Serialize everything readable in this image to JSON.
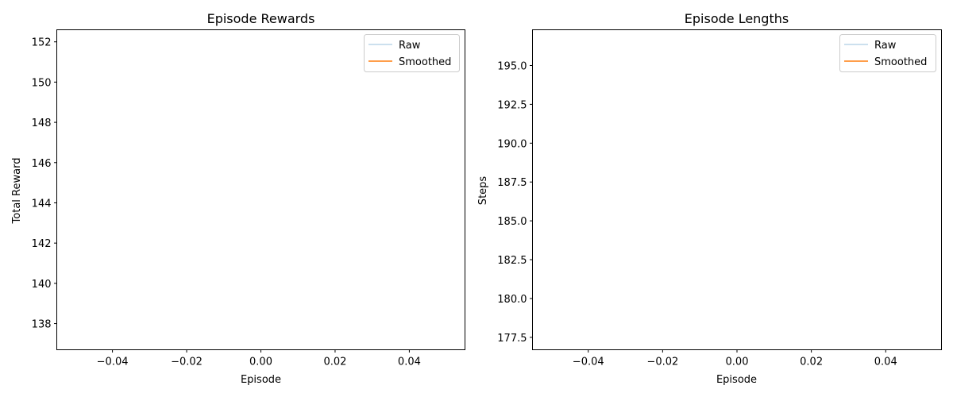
{
  "chart_data": [
    {
      "type": "line",
      "title": "Episode Rewards",
      "xlabel": "Episode",
      "ylabel": "Total Reward",
      "xlim": [
        -0.055,
        0.055
      ],
      "ylim": [
        136.7,
        152.6
      ],
      "xticks": [
        -0.04,
        -0.02,
        0.0,
        0.02,
        0.04
      ],
      "xtick_labels": [
        "−0.04",
        "−0.02",
        "0.00",
        "0.02",
        "0.04"
      ],
      "yticks": [
        138,
        140,
        142,
        144,
        146,
        148,
        150,
        152
      ],
      "ytick_labels": [
        "138",
        "140",
        "142",
        "144",
        "146",
        "148",
        "150",
        "152"
      ],
      "grid": false,
      "legend_position": "upper right",
      "series": [
        {
          "name": "Raw",
          "color": "#1f77b4",
          "alpha": 0.3,
          "x": [],
          "y": []
        },
        {
          "name": "Smoothed",
          "color": "#ff7f0e",
          "alpha": 1.0,
          "x": [],
          "y": []
        }
      ]
    },
    {
      "type": "line",
      "title": "Episode Lengths",
      "xlabel": "Episode",
      "ylabel": "Steps",
      "xlim": [
        -0.055,
        0.055
      ],
      "ylim": [
        176.7,
        197.3
      ],
      "xticks": [
        -0.04,
        -0.02,
        0.0,
        0.02,
        0.04
      ],
      "xtick_labels": [
        "−0.04",
        "−0.02",
        "0.00",
        "0.02",
        "0.04"
      ],
      "yticks": [
        177.5,
        180.0,
        182.5,
        185.0,
        187.5,
        190.0,
        192.5,
        195.0
      ],
      "ytick_labels": [
        "177.5",
        "180.0",
        "182.5",
        "185.0",
        "187.5",
        "190.0",
        "192.5",
        "195.0"
      ],
      "grid": false,
      "legend_position": "upper right",
      "series": [
        {
          "name": "Raw",
          "color": "#1f77b4",
          "alpha": 0.3,
          "x": [],
          "y": []
        },
        {
          "name": "Smoothed",
          "color": "#ff7f0e",
          "alpha": 1.0,
          "x": [],
          "y": []
        }
      ]
    }
  ]
}
